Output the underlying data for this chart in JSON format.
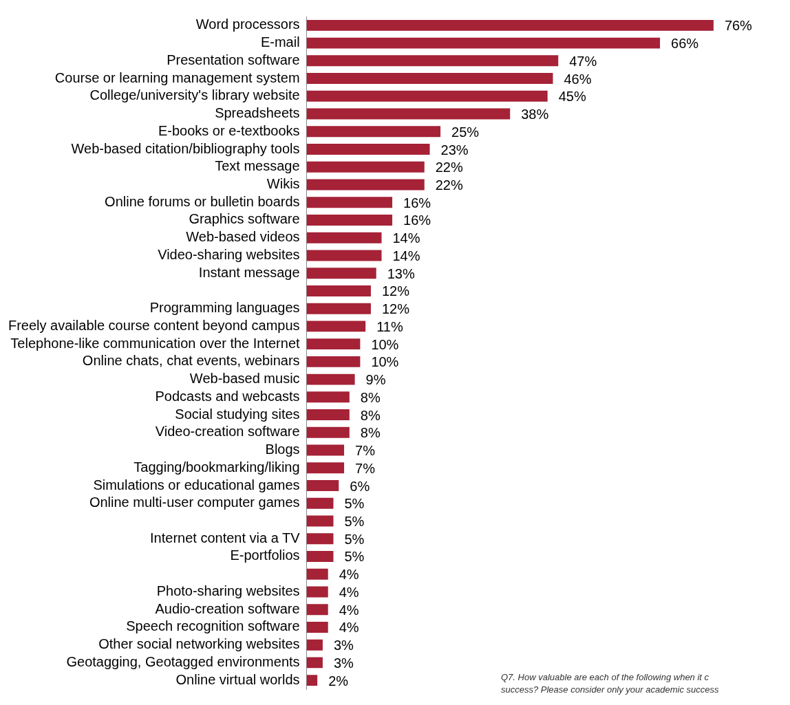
{
  "chart_data": {
    "type": "bar",
    "orientation": "horizontal",
    "color": "#a52237",
    "categories": [
      "Word processors",
      "E-mail",
      "Presentation software",
      "Course or learning management system",
      "College/university's library website",
      "Spreadsheets",
      "E-books or e-textbooks",
      "Web-based citation/bibliography tools",
      "Text message",
      "Wikis",
      "Online forums or bulletin boards",
      "Graphics software",
      "Web-based videos",
      "Video-sharing websites",
      "Instant message",
      null,
      "Programming languages",
      "Freely available course content beyond campus",
      "Telephone-like communication over the Internet",
      "Online chats, chat events, webinars",
      "Web-based music",
      "Podcasts and webcasts",
      "Social studying sites",
      "Video-creation software",
      "Blogs",
      "Tagging/bookmarking/liking",
      "Simulations or educational games",
      "Online multi-user computer games",
      null,
      "Internet content via a TV",
      "E-portfolios",
      null,
      "Photo-sharing websites",
      "Audio-creation software",
      "Speech recognition software",
      "Other social networking websites",
      "Geotagging, Geotagged environments",
      "Online virtual worlds"
    ],
    "values": [
      76,
      66,
      47,
      46,
      45,
      38,
      25,
      23,
      22,
      22,
      16,
      16,
      14,
      14,
      13,
      12,
      12,
      11,
      10,
      10,
      9,
      8,
      8,
      8,
      7,
      7,
      6,
      5,
      5,
      5,
      5,
      4,
      4,
      4,
      4,
      3,
      3,
      2
    ],
    "value_labels": [
      "76%",
      "66%",
      "47%",
      "46%",
      "45%",
      "38%",
      "25%",
      "23%",
      "22%",
      "22%",
      "16%",
      "16%",
      "14%",
      "14%",
      "13%",
      "12%",
      "12%",
      "11%",
      "10%",
      "10%",
      "9%",
      "8%",
      "8%",
      "8%",
      "7%",
      "7%",
      "6%",
      "5%",
      "5%",
      "5%",
      "5%",
      "4%",
      "4%",
      "4%",
      "4%",
      "3%",
      "3%",
      "2%"
    ],
    "annotations": [
      "Q7.  How valuable are each of the following when it c",
      "success? Please consider only your academic success"
    ]
  }
}
